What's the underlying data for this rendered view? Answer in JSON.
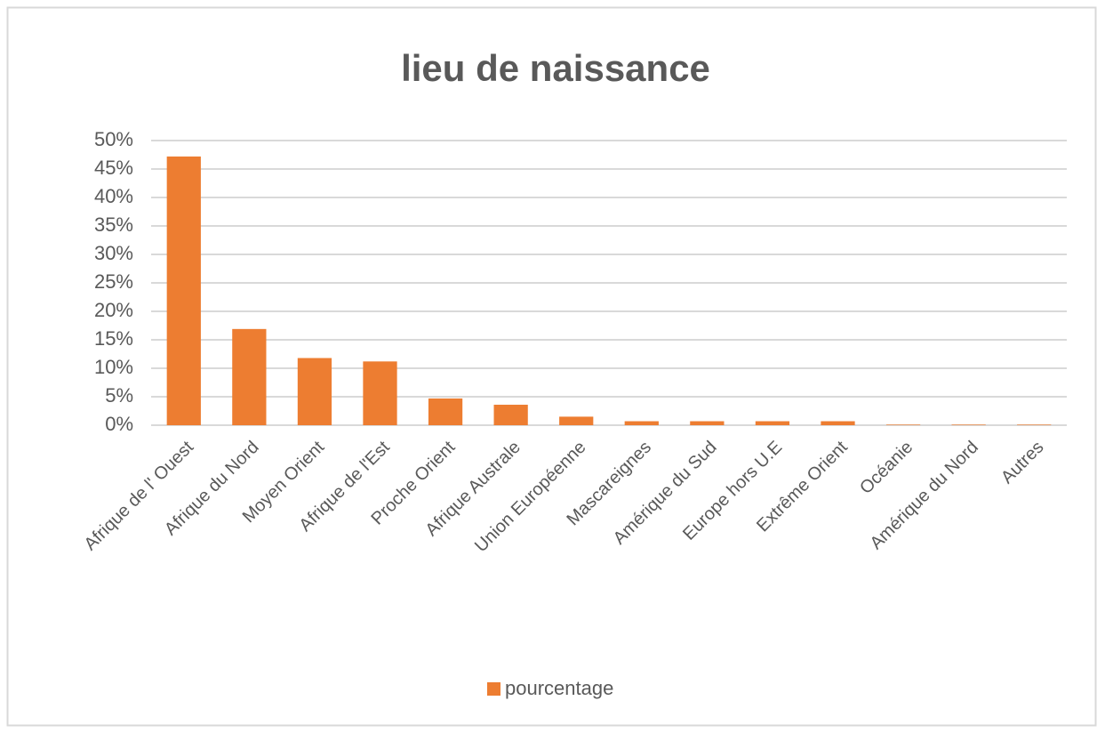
{
  "chart_data": {
    "type": "bar",
    "title": "lieu de naissance",
    "categories": [
      "Afrique de l' Ouest",
      "Afrique du Nord",
      "Moyen Orient",
      "Afrique de l'Est",
      "Proche Orient",
      "Afrique Australe",
      "Union Européenne",
      "Mascareignes",
      "Amérique du Sud",
      "Europe hors U.E",
      "Extrême Orient",
      "Océanie",
      "Amérique du Nord",
      "Autres"
    ],
    "series": [
      {
        "name": "pourcentage",
        "color": "#ed7d31",
        "values": [
          47.2,
          16.9,
          11.8,
          11.2,
          4.7,
          3.6,
          1.5,
          0.7,
          0.7,
          0.7,
          0.7,
          0.1,
          0.1,
          0.1
        ]
      }
    ],
    "ylim": [
      0,
      50
    ],
    "yticks": [
      {
        "value": 0,
        "label": "0%"
      },
      {
        "value": 5,
        "label": "5%"
      },
      {
        "value": 10,
        "label": "10%"
      },
      {
        "value": 15,
        "label": "15%"
      },
      {
        "value": 20,
        "label": "20%"
      },
      {
        "value": 25,
        "label": "25%"
      },
      {
        "value": 30,
        "label": "30%"
      },
      {
        "value": 35,
        "label": "35%"
      },
      {
        "value": 40,
        "label": "40%"
      },
      {
        "value": 45,
        "label": "45%"
      },
      {
        "value": 50,
        "label": "50%"
      }
    ],
    "grid": true,
    "legend": "bottom"
  }
}
